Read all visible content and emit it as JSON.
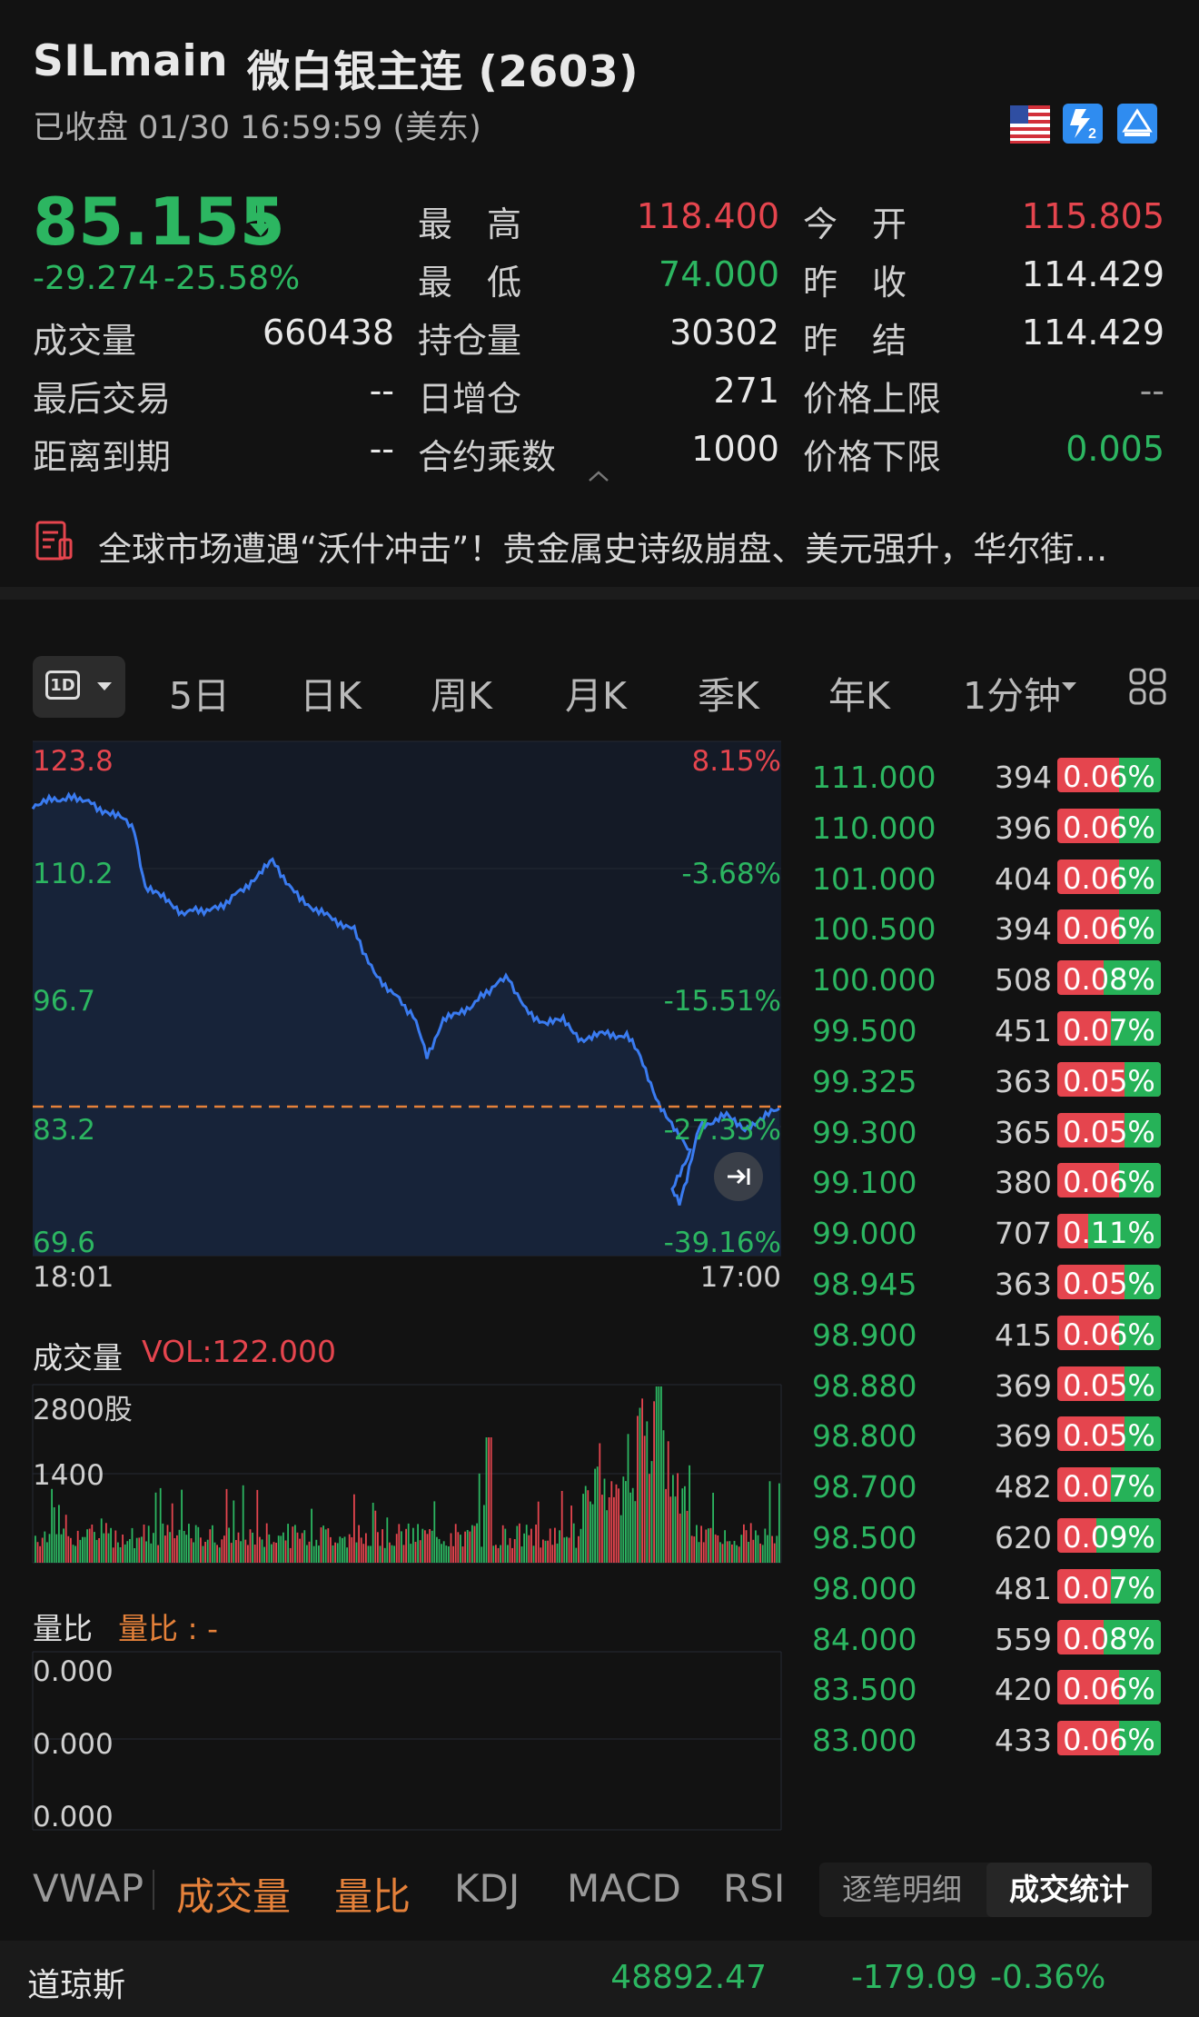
{
  "header": {
    "symbol": "SILmain",
    "name": "微白银主连 (2603)",
    "status": "已收盘 01/30 16:59:59 (美东)"
  },
  "quote": {
    "price": "85.155",
    "change": "-29.274",
    "change_pct": "-25.58%",
    "stats": [
      {
        "label": "最　高",
        "value": "118.400",
        "color": "#e5454e"
      },
      {
        "label": "今　开",
        "value": "115.805",
        "color": "#e5454e"
      },
      {
        "label": "最　低",
        "value": "74.000",
        "color": "#2cb661"
      },
      {
        "label": "昨　收",
        "value": "114.429",
        "color": "#e8e8e8"
      },
      {
        "label": "成交量",
        "value": "660438",
        "color": "#e8e8e8"
      },
      {
        "label": "持仓量",
        "value": "30302",
        "color": "#e8e8e8"
      },
      {
        "label": "昨　结",
        "value": "114.429",
        "color": "#e8e8e8"
      },
      {
        "label": "最后交易",
        "value": "--",
        "color": "#e8e8e8"
      },
      {
        "label": "日增仓",
        "value": "271",
        "color": "#e8e8e8"
      },
      {
        "label": "价格上限",
        "value": "--",
        "color": "#9a9a9a"
      },
      {
        "label": "距离到期",
        "value": "--",
        "color": "#e8e8e8"
      },
      {
        "label": "合约乘数",
        "value": "1000",
        "color": "#e8e8e8"
      },
      {
        "label": "价格下限",
        "value": "0.005",
        "color": "#2cb661"
      }
    ]
  },
  "news": {
    "text": "全球市场遭遇“沃什冲击”！贵金属史诗级崩盘、美元强升，华尔街…"
  },
  "chart_tabs": {
    "period_selector": "1D",
    "items": [
      "5日",
      "日K",
      "周K",
      "月K",
      "季K",
      "年K",
      "1分钟"
    ]
  },
  "price_chart": {
    "y_left": [
      "123.8",
      "110.2",
      "96.7",
      "83.2",
      "69.6"
    ],
    "y_right": [
      "8.15%",
      "-3.68%",
      "-15.51%",
      "-27.33%",
      "-39.16%"
    ],
    "x_start": "18:01",
    "x_end": "17:00"
  },
  "volume": {
    "label": "成交量",
    "vol_text": "VOL:122.000",
    "y_labels": [
      "2800股",
      "1400"
    ]
  },
  "ratio": {
    "label": "量比",
    "value_text": "量比 : -",
    "y_labels": [
      "0.000",
      "0.000",
      "0.000"
    ]
  },
  "order_book": [
    {
      "price": "111.000",
      "vol": "394",
      "pct": "0.06%",
      "fill": 0.4
    },
    {
      "price": "110.000",
      "vol": "396",
      "pct": "0.06%",
      "fill": 0.4
    },
    {
      "price": "101.000",
      "vol": "404",
      "pct": "0.06%",
      "fill": 0.4
    },
    {
      "price": "100.500",
      "vol": "394",
      "pct": "0.06%",
      "fill": 0.4
    },
    {
      "price": "100.000",
      "vol": "508",
      "pct": "0.08%",
      "fill": 0.55
    },
    {
      "price": "99.500",
      "vol": "451",
      "pct": "0.07%",
      "fill": 0.48
    },
    {
      "price": "99.325",
      "vol": "363",
      "pct": "0.05%",
      "fill": 0.35
    },
    {
      "price": "99.300",
      "vol": "365",
      "pct": "0.05%",
      "fill": 0.35
    },
    {
      "price": "99.100",
      "vol": "380",
      "pct": "0.06%",
      "fill": 0.4
    },
    {
      "price": "99.000",
      "vol": "707",
      "pct": "0.11%",
      "fill": 0.7
    },
    {
      "price": "98.945",
      "vol": "363",
      "pct": "0.05%",
      "fill": 0.35
    },
    {
      "price": "98.900",
      "vol": "415",
      "pct": "0.06%",
      "fill": 0.4
    },
    {
      "price": "98.880",
      "vol": "369",
      "pct": "0.05%",
      "fill": 0.35
    },
    {
      "price": "98.800",
      "vol": "369",
      "pct": "0.05%",
      "fill": 0.35
    },
    {
      "price": "98.700",
      "vol": "482",
      "pct": "0.07%",
      "fill": 0.48
    },
    {
      "price": "98.500",
      "vol": "620",
      "pct": "0.09%",
      "fill": 0.62
    },
    {
      "price": "98.000",
      "vol": "481",
      "pct": "0.07%",
      "fill": 0.48
    },
    {
      "price": "84.000",
      "vol": "559",
      "pct": "0.08%",
      "fill": 0.55
    },
    {
      "price": "83.500",
      "vol": "420",
      "pct": "0.06%",
      "fill": 0.4
    },
    {
      "price": "83.000",
      "vol": "433",
      "pct": "0.06%",
      "fill": 0.4
    }
  ],
  "indicator_tabs": [
    "VWAP",
    "成交量",
    "量比",
    "KDJ",
    "MACD",
    "RSI"
  ],
  "detail_tabs": [
    "逐笔明细",
    "成交统计"
  ],
  "ticker": {
    "name": "道琼斯",
    "value": "48892.47",
    "change": "-179.09",
    "pct": "-0.36%"
  },
  "colors": {
    "up": "#e5454e",
    "down": "#2cb661",
    "line": "#3a7bf0",
    "accent": "#e5813a"
  },
  "icons": [
    "us-flag-icon",
    "level2-icon",
    "exchange-icon",
    "news-doc-icon",
    "dropdown-icon",
    "grid-icon",
    "jump-to-latest-icon",
    "collapse-arrow-icon"
  ]
}
